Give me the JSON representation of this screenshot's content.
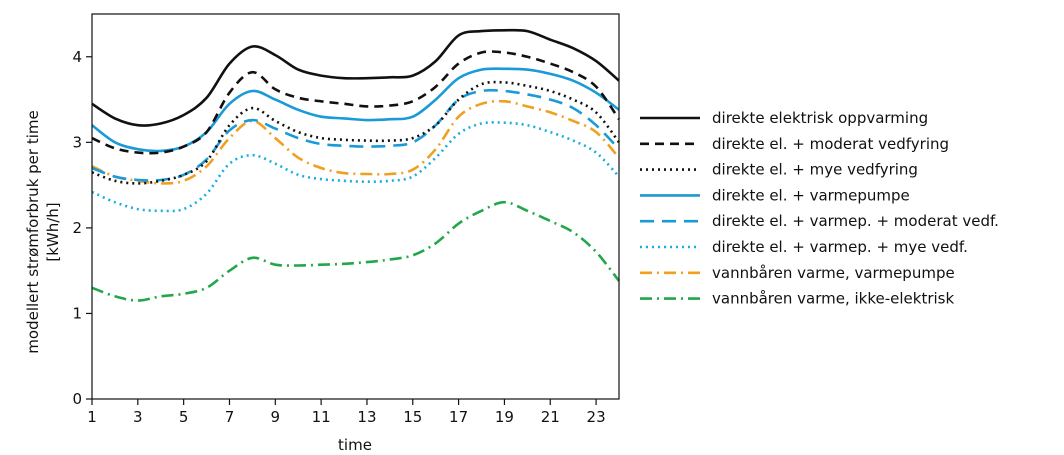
{
  "chart_data": {
    "type": "line",
    "title": "",
    "xlabel": "time",
    "ylabel": "modellert strømforbruk per time",
    "ylabel_unit": "[kWh/h]",
    "xlim": [
      1,
      24
    ],
    "ylim": [
      0,
      4.5
    ],
    "xticks": [
      1,
      3,
      5,
      7,
      9,
      11,
      13,
      15,
      17,
      19,
      21,
      23
    ],
    "yticks": [
      0,
      1,
      2,
      3,
      4
    ],
    "grid": false,
    "legend_position": "right",
    "x": [
      1,
      2,
      3,
      4,
      5,
      6,
      7,
      8,
      9,
      10,
      11,
      12,
      13,
      14,
      15,
      16,
      17,
      18,
      19,
      20,
      21,
      22,
      23,
      24
    ],
    "series": [
      {
        "name": "direkte elektrisk oppvarming",
        "color": "#111111",
        "dash": "solid",
        "values": [
          3.45,
          3.28,
          3.2,
          3.22,
          3.32,
          3.52,
          3.92,
          4.12,
          4.02,
          3.85,
          3.78,
          3.75,
          3.75,
          3.76,
          3.78,
          3.95,
          4.25,
          4.3,
          4.31,
          4.3,
          4.2,
          4.1,
          3.95,
          3.72
        ]
      },
      {
        "name": "direkte el. + moderat vedfyring",
        "color": "#111111",
        "dash": "dash",
        "values": [
          3.05,
          2.93,
          2.88,
          2.88,
          2.95,
          3.12,
          3.58,
          3.82,
          3.62,
          3.52,
          3.48,
          3.45,
          3.42,
          3.43,
          3.48,
          3.65,
          3.92,
          4.05,
          4.05,
          4.0,
          3.92,
          3.82,
          3.65,
          3.27
        ]
      },
      {
        "name": "direkte el. + mye vedfyring",
        "color": "#111111",
        "dash": "dot",
        "values": [
          2.65,
          2.55,
          2.52,
          2.55,
          2.62,
          2.78,
          3.2,
          3.4,
          3.25,
          3.12,
          3.05,
          3.03,
          3.02,
          3.02,
          3.05,
          3.2,
          3.5,
          3.68,
          3.7,
          3.66,
          3.6,
          3.5,
          3.35,
          3.0
        ]
      },
      {
        "name": "direkte el. + varmepumpe",
        "color": "#1a9ad6",
        "dash": "solid",
        "values": [
          3.2,
          3.0,
          2.92,
          2.9,
          2.95,
          3.12,
          3.45,
          3.6,
          3.5,
          3.38,
          3.3,
          3.28,
          3.26,
          3.27,
          3.3,
          3.5,
          3.75,
          3.85,
          3.86,
          3.85,
          3.8,
          3.72,
          3.58,
          3.38
        ]
      },
      {
        "name": "direkte el. + varmep. + moderat vedf.",
        "color": "#1a9ad6",
        "dash": "longdash",
        "values": [
          2.7,
          2.6,
          2.56,
          2.56,
          2.62,
          2.8,
          3.14,
          3.26,
          3.16,
          3.05,
          2.98,
          2.96,
          2.95,
          2.96,
          3.0,
          3.2,
          3.5,
          3.6,
          3.6,
          3.56,
          3.5,
          3.4,
          3.2,
          2.92
        ]
      },
      {
        "name": "direkte el. + varmep. + mye vedf.",
        "color": "#1aaee0",
        "dash": "dot",
        "values": [
          2.42,
          2.3,
          2.22,
          2.2,
          2.22,
          2.4,
          2.75,
          2.85,
          2.75,
          2.62,
          2.57,
          2.55,
          2.54,
          2.55,
          2.6,
          2.82,
          3.1,
          3.22,
          3.23,
          3.2,
          3.12,
          3.02,
          2.88,
          2.6
        ]
      },
      {
        "name": "vannbåren varme, varmepumpe",
        "color": "#f0a020",
        "dash": "dashdot",
        "values": [
          2.72,
          2.6,
          2.55,
          2.52,
          2.55,
          2.72,
          3.05,
          3.25,
          3.05,
          2.82,
          2.7,
          2.64,
          2.63,
          2.63,
          2.68,
          2.92,
          3.3,
          3.45,
          3.48,
          3.42,
          3.35,
          3.25,
          3.12,
          2.82
        ]
      },
      {
        "name": "vannbåren varme, ikke-elektrisk",
        "color": "#22a84a",
        "dash": "dashdot",
        "values": [
          1.3,
          1.2,
          1.15,
          1.2,
          1.23,
          1.3,
          1.5,
          1.65,
          1.57,
          1.56,
          1.57,
          1.58,
          1.6,
          1.63,
          1.68,
          1.82,
          2.05,
          2.2,
          2.3,
          2.2,
          2.08,
          1.95,
          1.72,
          1.38
        ]
      }
    ]
  }
}
